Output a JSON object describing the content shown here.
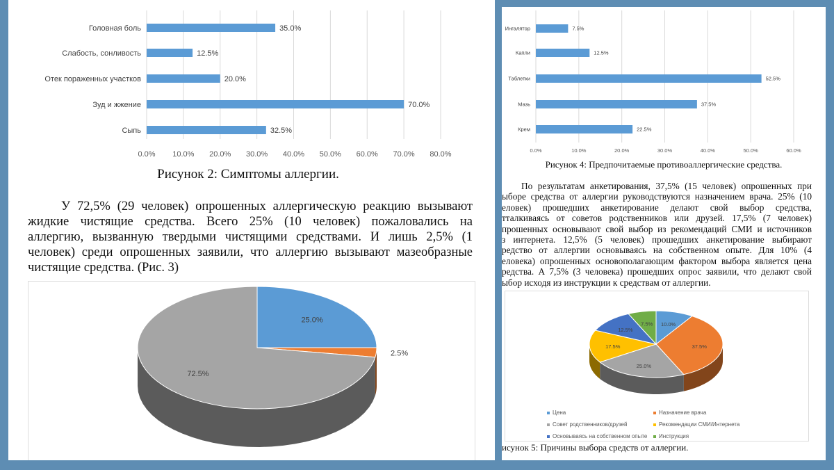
{
  "left_page": {
    "figure2_caption": "Рисунок 2: Симптомы аллергии.",
    "paragraph": [
      "У 72,5% (29 человек) опрошенных аллергическую реакцию вызывают",
      "жидкие чистящие средства. Всего 25% (10 человек) пожаловались на",
      "аллергию, вызванную твердыми чистящими средствами. И лишь 2,5% (1",
      "человек) среди опрошенных заявили, что аллергию вызывают мазеобразные",
      "чистящие средства. (Рис. 3)"
    ]
  },
  "right_page": {
    "figure4_caption": "Рисунок 4: Предпочитаемые противоаллергические средства.",
    "paragraph": [
      "По результатам анкетирования, 37,5% (15 человек) опрошенных при",
      "ыборе средства от аллергии руководствуются назначением врача. 25% (10",
      "еловек) прошедших анкетирование делают свой выбор средства,",
      "тталкиваясь от советов родственников или друзей. 17,5% (7 человек)",
      "прошенных основывают свой выбор из рекомендаций СМИ и источников",
      "з интернета. 12,5% (5 человек) прошедших анкетирование выбирают",
      "редство от аллергии основываясь на собственном опыте. Для 10% (4",
      "еловека) опрошенных основополагающим фактором выбора является цена",
      "редства. А 7,5% (3 человека) прошедших опрос заявили, что делают свой",
      "ыбор исходя из инструкции к средствам от аллергии."
    ],
    "figure5_caption": "исунок 5: Причины выбора средств от аллергии."
  },
  "chart_data": [
    {
      "type": "bar",
      "orientation": "horizontal",
      "categories": [
        "Головная боль",
        "Слабость, сонливость",
        "Отек пораженных участков",
        "Зуд и жжение",
        "Сыпь"
      ],
      "values": [
        35.0,
        12.5,
        20.0,
        70.0,
        32.5
      ],
      "labels": [
        "35.0%",
        "12.5%",
        "20.0%",
        "70.0%",
        "32.5%"
      ],
      "xlim": [
        0,
        80
      ],
      "ticks": [
        "0.0%",
        "10.0%",
        "20.0%",
        "30.0%",
        "40.0%",
        "50.0%",
        "60.0%",
        "70.0%",
        "80.0%"
      ],
      "grid": true,
      "color": "#5b9bd5"
    },
    {
      "type": "pie",
      "style": "3d",
      "values": [
        25.0,
        2.5,
        72.5
      ],
      "labels": [
        "25.0%",
        "2.5%",
        "72.5%"
      ],
      "colors": [
        "#5b9bd5",
        "#ed7d31",
        "#a5a5a5"
      ]
    },
    {
      "type": "bar",
      "orientation": "horizontal",
      "categories": [
        "Ингалятор",
        "Капли",
        "Таблетки",
        "Мазь",
        "Крем"
      ],
      "values": [
        7.5,
        12.5,
        52.5,
        37.5,
        22.5
      ],
      "labels": [
        "7.5%",
        "12.5%",
        "52.5%",
        "37.5%",
        "22.5%"
      ],
      "xlim": [
        0,
        60
      ],
      "ticks": [
        "0.0%",
        "10.0%",
        "20.0%",
        "30.0%",
        "40.0%",
        "50.0%",
        "60.0%"
      ],
      "grid": true,
      "color": "#5b9bd5"
    },
    {
      "type": "pie",
      "style": "3d",
      "categories": [
        "Цена",
        "Назначение врача",
        "Совет родственников/друзей",
        "Рекомендации СМИ/Интернета",
        "Основываясь на собственном опыте",
        "Инструкция"
      ],
      "values": [
        10.0,
        37.5,
        25.0,
        17.5,
        12.5,
        7.5
      ],
      "labels": [
        "10.0%",
        "37.5%",
        "25.0%",
        "17.5%",
        "12.5%",
        "7.5%"
      ],
      "colors": [
        "#5b9bd5",
        "#ed7d31",
        "#a5a5a5",
        "#ffc000",
        "#4472c4",
        "#70ad47"
      ],
      "legend": "bottom"
    }
  ]
}
